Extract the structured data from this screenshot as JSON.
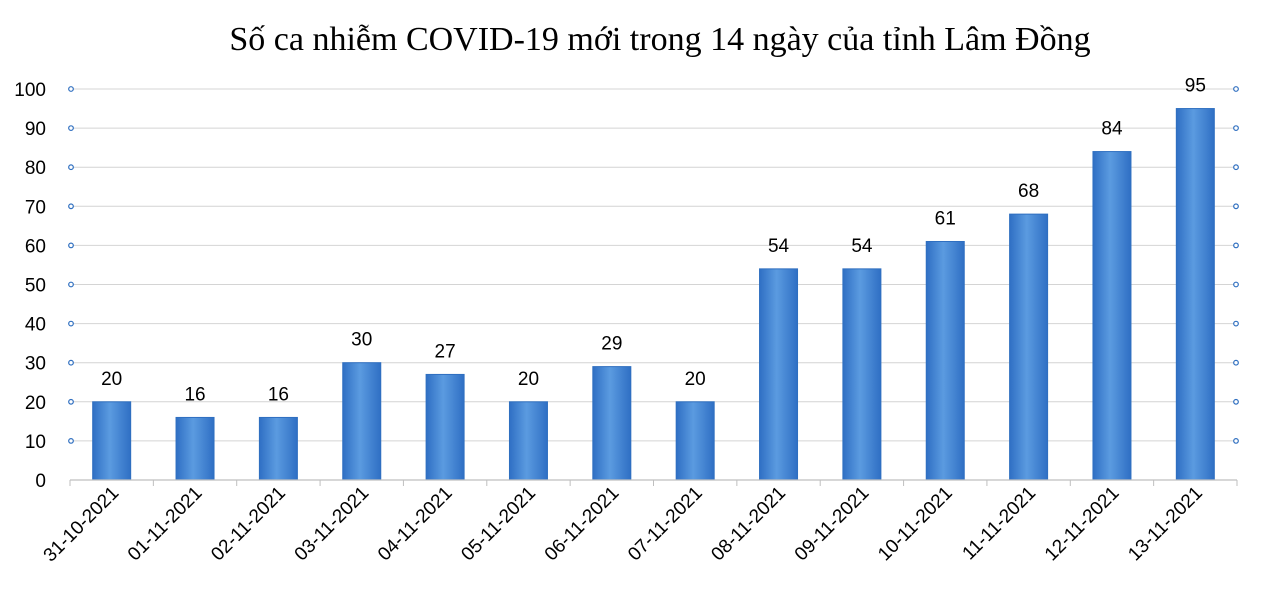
{
  "chart_data": {
    "type": "bar",
    "title": "Số ca nhiễm COVID-19 mới trong 14 ngày của tỉnh Lâm Đồng",
    "xlabel": "",
    "ylabel": "",
    "categories": [
      "31-10-2021",
      "01-11-2021",
      "02-11-2021",
      "03-11-2021",
      "04-11-2021",
      "05-11-2021",
      "06-11-2021",
      "07-11-2021",
      "08-11-2021",
      "09-11-2021",
      "10-11-2021",
      "11-11-2021",
      "12-11-2021",
      "13-11-2021"
    ],
    "values": [
      20,
      16,
      16,
      30,
      27,
      20,
      29,
      20,
      54,
      54,
      61,
      68,
      84,
      95
    ],
    "ylim": [
      0,
      100
    ],
    "yticks": [
      0,
      10,
      20,
      30,
      40,
      50,
      60,
      70,
      80,
      90,
      100
    ],
    "grid": true,
    "data_labels": true,
    "bar_color": "#4a8ad6",
    "bar_edge_color": "#2f6fc0",
    "grid_color": "#d4d4d4",
    "marker_color": "#2f6fc0"
  }
}
